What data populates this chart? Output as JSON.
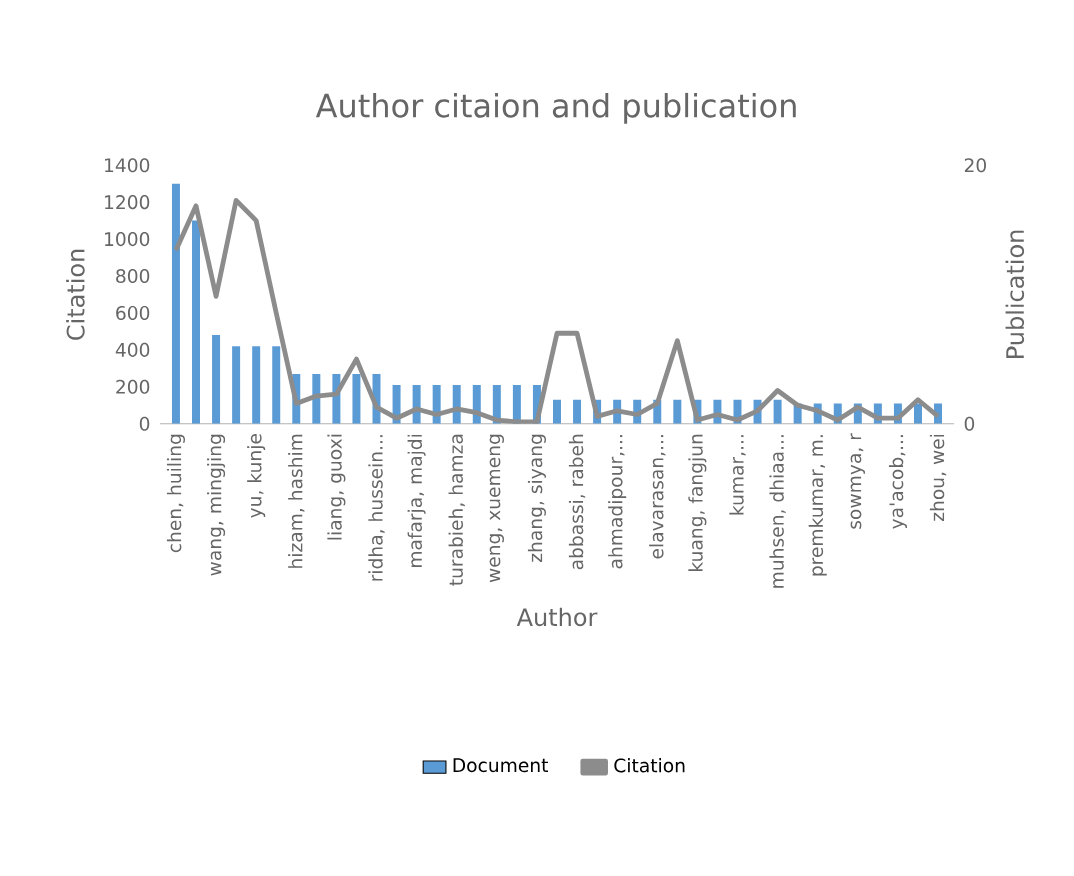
{
  "chart_data": {
    "type": "bar",
    "title": "Author citaion and publication",
    "xlabel": "Author",
    "ylabel": "Citation",
    "y2label": "Publication",
    "categories": [
      "chen, huiling",
      null,
      "wang, mingjing",
      null,
      "yu, kunje",
      null,
      "hizam, hashim",
      null,
      "liang, guoxi",
      null,
      "ridha, hussein...",
      null,
      "mafarja, majdi",
      null,
      "turabieh, hamza",
      null,
      "weng, xuemeng",
      null,
      "zhang, siyang",
      null,
      "abbassi, rabeh",
      null,
      "ahmadipour,...",
      null,
      "elavarasan,...",
      null,
      "kuang, fangjun",
      null,
      "kumar,...",
      null,
      "muhsen, dhiaa...",
      null,
      "premkumar, m.",
      null,
      "sowmya, r",
      null,
      "ya'acob,...",
      null,
      "zhou, wei"
    ],
    "series": [
      {
        "name": "Document",
        "color": "#5b9bd5",
        "values": [
          1300,
          1100,
          480,
          420,
          420,
          420,
          270,
          270,
          270,
          270,
          270,
          210,
          210,
          210,
          210,
          210,
          210,
          210,
          210,
          130,
          130,
          130,
          130,
          130,
          130,
          130,
          130,
          130,
          130,
          130,
          130,
          110,
          110,
          110,
          110,
          110,
          110,
          110,
          110
        ]
      },
      {
        "name": "Citation",
        "type": "line",
        "color": "#8c8c8c",
        "values": [
          940,
          1180,
          690,
          1210,
          1100,
          600,
          110,
          150,
          160,
          350,
          90,
          30,
          80,
          50,
          80,
          60,
          20,
          10,
          10,
          490,
          490,
          40,
          70,
          50,
          110,
          450,
          20,
          50,
          20,
          70,
          180,
          100,
          70,
          20,
          90,
          30,
          30,
          130,
          40
        ]
      }
    ],
    "ylim": [
      0,
      1400
    ],
    "yticks": [
      0,
      200,
      400,
      600,
      800,
      1000,
      1200,
      1400
    ],
    "y2lim": [
      0,
      20
    ],
    "y2ticks": [
      0,
      20
    ],
    "legend": "bottom"
  }
}
